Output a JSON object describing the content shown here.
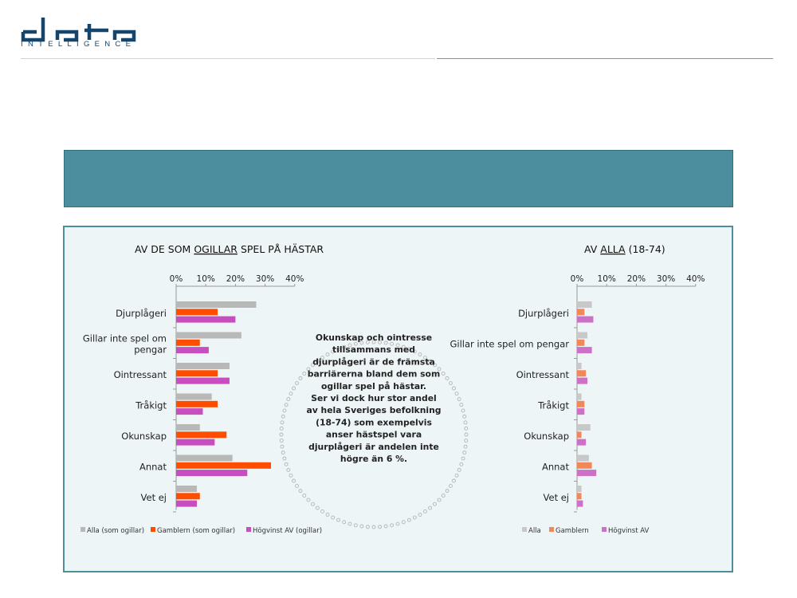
{
  "logo": {
    "text": "INTELLIGENCE"
  },
  "banner": {
    "text": ""
  },
  "colors": {
    "alla": "#b8b8b8",
    "gamblern": "#ff4d00",
    "hogvinst": "#c84ec0",
    "alla_right": "#c8c8c8",
    "gamblern_right": "#f0885a",
    "hogvinst_right": "#cc70c8",
    "banner": "#4d8e9e",
    "panel_bg": "#eef5f6"
  },
  "callout": {
    "lines": [
      "Okunskap och ointresse",
      "tillsammans med",
      "djurplågeri är de främsta",
      "barriärerna bland dem som",
      "ogillar spel på hästar.",
      "Ser vi dock hur stor andel",
      "av hela Sveriges befolkning",
      "(18-74) som exempelvis",
      "anser hästspel vara",
      "djurplågeri är andelen inte",
      "högre än 6 %."
    ]
  },
  "chart_data": [
    {
      "type": "bar",
      "orientation": "horizontal",
      "title_parts": [
        "AV DE SOM ",
        "OGILLAR",
        " SPEL PÅ HÄSTAR"
      ],
      "categories": [
        "Djurplågeri",
        "Gillar inte spel om pengar",
        "Ointressant",
        "Tråkigt",
        "Okunskap",
        "Annat",
        "Vet ej"
      ],
      "category_lines": [
        [
          "Djurplågeri"
        ],
        [
          "Gillar inte spel om",
          "pengar"
        ],
        [
          "Ointressant"
        ],
        [
          "Tråkigt"
        ],
        [
          "Okunskap"
        ],
        [
          "Annat"
        ],
        [
          "Vet ej"
        ]
      ],
      "xlim": [
        0,
        40
      ],
      "ticks": [
        "0%",
        "10%",
        "20%",
        "30%",
        "40%"
      ],
      "series": [
        {
          "name": "Alla (som ogillar)",
          "values": [
            27,
            22,
            18,
            12,
            8,
            19,
            7
          ]
        },
        {
          "name": "Gamblern (som ogillar)",
          "values": [
            14,
            8,
            14,
            14,
            17,
            32,
            8
          ]
        },
        {
          "name": "Högvinst AV (ogillar)",
          "values": [
            20,
            11,
            18,
            9,
            13,
            24,
            7
          ]
        }
      ],
      "legend_position": "bottom-left"
    },
    {
      "type": "bar",
      "orientation": "horizontal",
      "title_parts": [
        "AV ",
        "ALLA",
        " (18-74)"
      ],
      "categories": [
        "Djurplågeri",
        "Gillar inte spel om pengar",
        "Ointressant",
        "Tråkigt",
        "Okunskap",
        "Annat",
        "Vet ej"
      ],
      "category_lines": [
        [
          "Djurplågeri"
        ],
        [
          "Gillar inte spel om pengar"
        ],
        [
          "Ointressant"
        ],
        [
          "Tråkigt"
        ],
        [
          "Okunskap"
        ],
        [
          "Annat"
        ],
        [
          "Vet ej"
        ]
      ],
      "xlim": [
        0,
        40
      ],
      "ticks": [
        "0%",
        "10%",
        "20%",
        "30%",
        "40%"
      ],
      "series": [
        {
          "name": "Alla",
          "values": [
            5,
            3.5,
            1.5,
            1.5,
            4.5,
            4,
            1.5
          ]
        },
        {
          "name": "Gamblern",
          "values": [
            2.5,
            2.5,
            3,
            2.5,
            1.5,
            5,
            1.5
          ]
        },
        {
          "name": "Högvinst AV",
          "values": [
            5.5,
            5,
            3.5,
            2.5,
            3,
            6.5,
            2
          ]
        }
      ],
      "legend_position": "bottom-right"
    }
  ]
}
